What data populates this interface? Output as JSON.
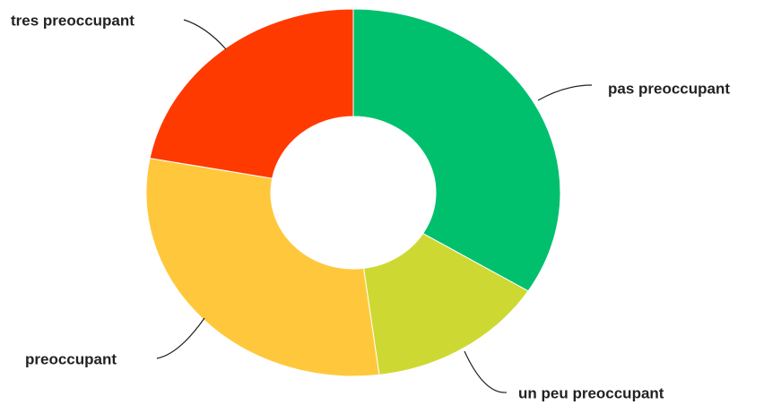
{
  "chart_data": {
    "type": "donut",
    "categories": [
      "pas preoccupant",
      "un peu preoccupant",
      "preoccupant",
      "tres preoccupant"
    ],
    "values": [
      34,
      14,
      30,
      22
    ],
    "colors": [
      "#00c06e",
      "#cdd932",
      "#ffc83c",
      "#ff3a00"
    ]
  }
}
